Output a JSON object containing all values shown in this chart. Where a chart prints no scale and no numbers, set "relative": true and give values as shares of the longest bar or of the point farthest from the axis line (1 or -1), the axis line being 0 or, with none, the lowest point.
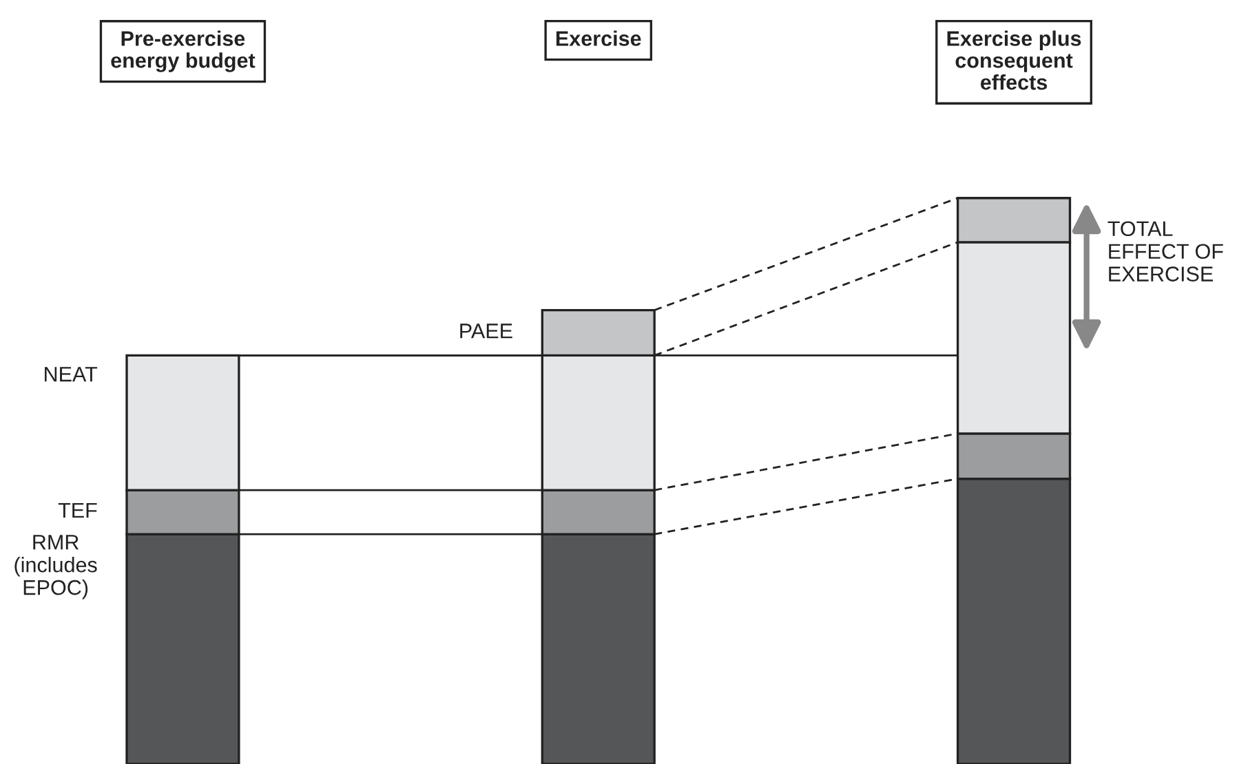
{
  "chart_data": {
    "type": "bar",
    "stacked": true,
    "relative": true,
    "tick_labels": "x",
    "ref_lines": [
      {
        "axis": "y",
        "value": 0.722,
        "label": null
      }
    ],
    "categories": [
      "Pre-exercise\nenergy budget",
      "Exercise",
      "Exercise plus\nconsequent\neffects"
    ],
    "series": [
      {
        "name": "RMR\n(includes\nEPOC)",
        "color": "#555657",
        "values": [
          0.406,
          0.406,
          0.504
        ]
      },
      {
        "name": "TEF",
        "color": "#9c9d9f",
        "values": [
          0.078,
          0.078,
          0.08
        ]
      },
      {
        "name": "NEAT",
        "color": "#e5e6e7",
        "values": [
          0.238,
          0.238,
          0.338
        ]
      },
      {
        "name": "PAEE",
        "color": "#c4c5c7",
        "values": [
          null,
          0.08,
          0.078
        ]
      }
    ],
    "annotations": [
      "TOTAL\nEFFECT OF\nEXERCISE"
    ]
  }
}
